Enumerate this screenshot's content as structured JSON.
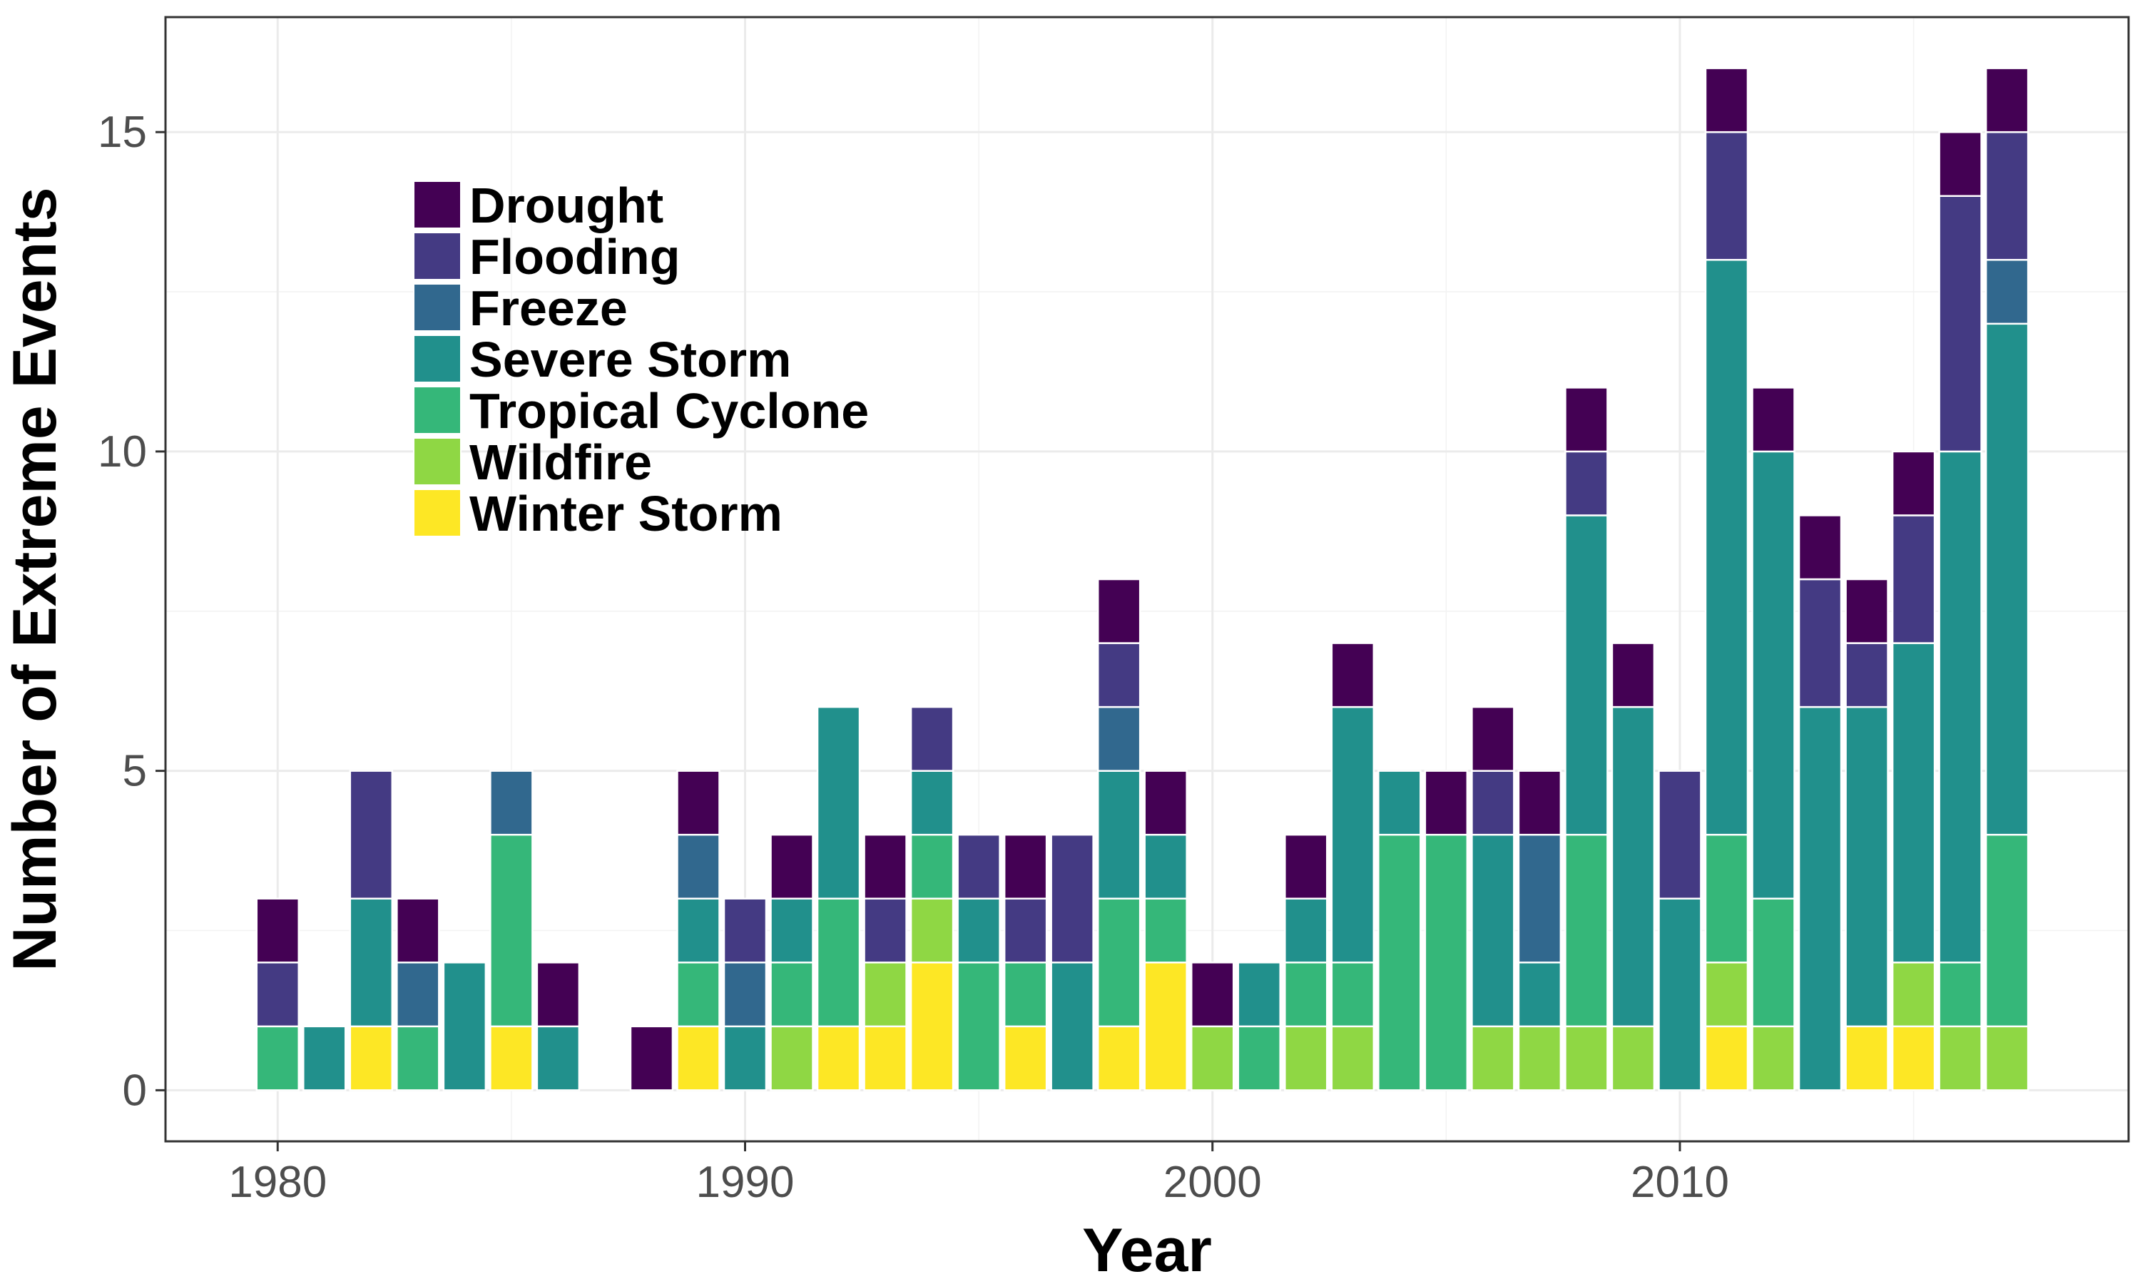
{
  "chart_data": {
    "type": "bar",
    "stacked": true,
    "xlabel": "Year",
    "ylabel": "Number of Extreme Events",
    "xlim": [
      1977.6,
      2019.6
    ],
    "ylim": [
      -0.8,
      16.8
    ],
    "xticks": [
      1980,
      1990,
      2000,
      2010
    ],
    "yticks": [
      0,
      5,
      10,
      15
    ],
    "grid": true,
    "legend_position": "top-left",
    "categories": [
      1980,
      1981,
      1982,
      1983,
      1984,
      1985,
      1986,
      1987,
      1988,
      1989,
      1990,
      1991,
      1992,
      1993,
      1994,
      1995,
      1996,
      1997,
      1998,
      1999,
      2000,
      2001,
      2002,
      2003,
      2004,
      2005,
      2006,
      2007,
      2008,
      2009,
      2010,
      2011,
      2012,
      2013,
      2014,
      2015,
      2016,
      2017
    ],
    "series": [
      {
        "name": "Winter Storm",
        "color": "#FDE725",
        "values": [
          0,
          0,
          1,
          0,
          0,
          1,
          0,
          0,
          0,
          1,
          0,
          0,
          1,
          1,
          2,
          0,
          1,
          0,
          1,
          2,
          0,
          0,
          0,
          0,
          0,
          0,
          0,
          0,
          0,
          0,
          0,
          1,
          0,
          0,
          1,
          1,
          0,
          0
        ]
      },
      {
        "name": "Wildfire",
        "color": "#8FD744",
        "values": [
          0,
          0,
          0,
          0,
          0,
          0,
          0,
          0,
          0,
          0,
          0,
          1,
          0,
          1,
          1,
          0,
          0,
          0,
          0,
          0,
          1,
          0,
          1,
          1,
          0,
          0,
          1,
          1,
          1,
          1,
          0,
          1,
          1,
          0,
          0,
          1,
          1,
          1
        ]
      },
      {
        "name": "Tropical Cyclone",
        "color": "#35B779",
        "values": [
          1,
          0,
          0,
          1,
          0,
          3,
          0,
          0,
          0,
          1,
          0,
          1,
          2,
          0,
          1,
          2,
          1,
          0,
          2,
          1,
          0,
          1,
          1,
          1,
          4,
          4,
          0,
          0,
          3,
          0,
          0,
          2,
          2,
          0,
          0,
          0,
          1,
          3
        ]
      },
      {
        "name": "Severe Storm",
        "color": "#21908C",
        "values": [
          0,
          1,
          2,
          0,
          2,
          0,
          1,
          0,
          0,
          1,
          1,
          1,
          3,
          0,
          1,
          1,
          0,
          2,
          2,
          1,
          0,
          1,
          1,
          4,
          1,
          0,
          3,
          1,
          5,
          5,
          3,
          9,
          7,
          6,
          5,
          5,
          8,
          8
        ]
      },
      {
        "name": "Freeze",
        "color": "#31688E",
        "values": [
          0,
          0,
          0,
          1,
          0,
          1,
          0,
          0,
          0,
          1,
          1,
          0,
          0,
          0,
          0,
          0,
          0,
          0,
          1,
          0,
          0,
          0,
          0,
          0,
          0,
          0,
          0,
          2,
          0,
          0,
          0,
          0,
          0,
          0,
          0,
          0,
          0,
          1
        ]
      },
      {
        "name": "Flooding",
        "color": "#443A83",
        "values": [
          1,
          0,
          2,
          0,
          0,
          0,
          0,
          0,
          0,
          0,
          1,
          0,
          0,
          1,
          1,
          1,
          1,
          2,
          1,
          0,
          0,
          0,
          0,
          0,
          0,
          0,
          1,
          0,
          1,
          0,
          2,
          2,
          0,
          2,
          1,
          2,
          4,
          2
        ]
      },
      {
        "name": "Drought",
        "color": "#440154",
        "values": [
          1,
          0,
          0,
          1,
          0,
          0,
          1,
          0,
          1,
          1,
          0,
          1,
          0,
          1,
          0,
          0,
          1,
          0,
          1,
          1,
          1,
          0,
          1,
          1,
          0,
          1,
          1,
          1,
          1,
          1,
          0,
          1,
          1,
          1,
          1,
          1,
          1,
          1
        ]
      }
    ]
  }
}
